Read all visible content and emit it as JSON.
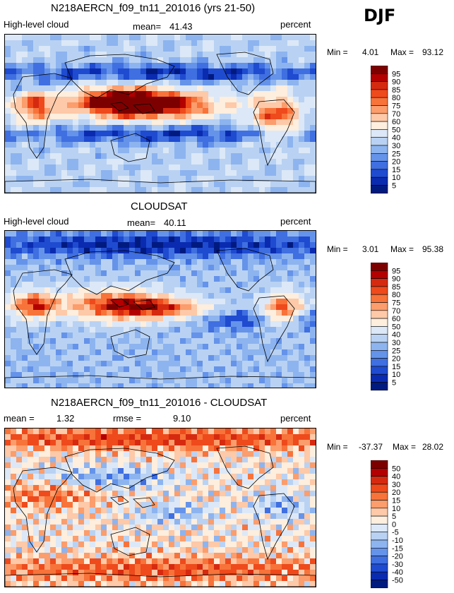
{
  "season": "DJF",
  "panels": [
    {
      "id": "model",
      "title": "N218AERCN_f09_tn11_201016 (yrs 21-50)",
      "left_label": "High-level cloud",
      "stat1_label": "mean=",
      "stat1_value": "41.43",
      "stat2_label": "",
      "stat2_value": "",
      "units": "percent",
      "min_label": "Min =",
      "min_value": "4.01",
      "max_label": "Max =",
      "max_value": "93.12",
      "field": "model"
    },
    {
      "id": "obs",
      "title": "CLOUDSAT",
      "left_label": "High-level cloud",
      "stat1_label": "mean=",
      "stat1_value": "40.11",
      "stat2_label": "",
      "stat2_value": "",
      "units": "percent",
      "min_label": "Min =",
      "min_value": "3.01",
      "max_label": "Max =",
      "max_value": "95.38",
      "field": "obs"
    },
    {
      "id": "diff",
      "title": "N218AERCN_f09_tn11_201016 - CLOUDSAT",
      "left_label": "mean =",
      "stat1_label": "",
      "stat1_value": "1.32",
      "stat2_label": "rmse =",
      "stat2_value": "9.10",
      "units": "percent",
      "min_label": "Min =",
      "min_value": "-37.37",
      "max_label": "Max =",
      "max_value": "28.02",
      "field": "diff"
    }
  ],
  "colorbars": {
    "absolute": {
      "labels": [
        "95",
        "90",
        "85",
        "80",
        "75",
        "70",
        "60",
        "50",
        "40",
        "30",
        "25",
        "20",
        "15",
        "10",
        "5"
      ],
      "colors": [
        "#7d0000",
        "#b30000",
        "#d62a10",
        "#ee4a1c",
        "#f7733a",
        "#fb9d6c",
        "#fdc9a8",
        "#fdeedd",
        "#dce8f7",
        "#b9d2f3",
        "#8db4ef",
        "#6593ea",
        "#3f6fe0",
        "#1f4bd0",
        "#0a2bb0",
        "#001a80"
      ]
    },
    "difference": {
      "labels": [
        "50",
        "40",
        "30",
        "20",
        "15",
        "10",
        "5",
        "0",
        "-5",
        "-10",
        "-15",
        "-20",
        "-30",
        "-40",
        "-50"
      ],
      "colors": [
        "#7d0000",
        "#b30000",
        "#d62a10",
        "#ee4a1c",
        "#f7733a",
        "#fb9d6c",
        "#fdc9a8",
        "#fdeedd",
        "#dce8f7",
        "#b9d2f3",
        "#8db4ef",
        "#6593ea",
        "#3f6fe0",
        "#1f4bd0",
        "#0a2bb0",
        "#001a80"
      ]
    }
  }
}
